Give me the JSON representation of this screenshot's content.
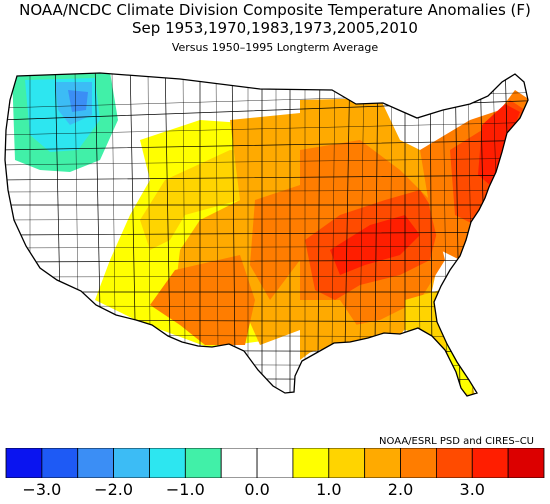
{
  "title": {
    "line1": "NOAA/NCDC Climate Division Composite Temperature Anomalies (F)",
    "line2": "Sep   1953,1970,1983,1973,2005,2010",
    "line3": "Versus 1950–1995 Longterm Average"
  },
  "credit": "NOAA/ESRL PSD and CIRES–CU",
  "legend": {
    "bins": [
      {
        "from": -3.5,
        "to": -3.0,
        "color": "#0a14f0"
      },
      {
        "from": -3.0,
        "to": -2.5,
        "color": "#1e5af5"
      },
      {
        "from": -2.5,
        "to": -2.0,
        "color": "#3b8ef5"
      },
      {
        "from": -2.0,
        "to": -1.5,
        "color": "#3cbcf5"
      },
      {
        "from": -1.5,
        "to": -1.0,
        "color": "#2de6f0"
      },
      {
        "from": -1.0,
        "to": -0.5,
        "color": "#41f0a8"
      },
      {
        "from": -0.5,
        "to": 0.0,
        "color": "#ffffff"
      },
      {
        "from": 0.0,
        "to": 0.5,
        "color": "#ffffff"
      },
      {
        "from": 0.5,
        "to": 1.0,
        "color": "#ffff00"
      },
      {
        "from": 1.0,
        "to": 1.5,
        "color": "#ffd400"
      },
      {
        "from": 1.5,
        "to": 2.0,
        "color": "#ffaa00"
      },
      {
        "from": 2.0,
        "to": 2.5,
        "color": "#ff7d00"
      },
      {
        "from": 2.5,
        "to": 3.0,
        "color": "#ff4b00"
      },
      {
        "from": 3.0,
        "to": 3.5,
        "color": "#ff1e00"
      },
      {
        "from": 3.5,
        "to": 4.0,
        "color": "#dc0000"
      }
    ],
    "tick_labels": [
      "−3.0",
      "−2.0",
      "−1.0",
      "0.0",
      "1.0",
      "2.0",
      "3.0"
    ]
  }
}
